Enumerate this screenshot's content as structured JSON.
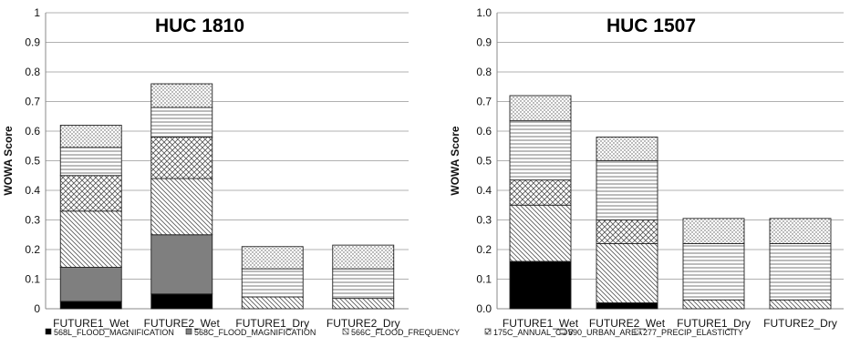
{
  "chart_data": [
    {
      "type": "bar",
      "stacked": true,
      "title": "HUC 1810",
      "ylabel": "WOWA Score",
      "xlabel": "",
      "ylim": [
        0,
        1
      ],
      "yticks": [
        "0",
        "0.1",
        "0.2",
        "0.3",
        "0.4",
        "0.5",
        "0.6",
        "0.7",
        "0.8",
        "0.9",
        "1"
      ],
      "grid": true,
      "legend_position": "bottom",
      "categories": [
        "FUTURE1_Wet",
        "FUTURE2_Wet",
        "FUTURE1_Dry",
        "FUTURE2_Dry"
      ],
      "series": [
        {
          "name": "568L_FLOOD_MAGNIFICATION",
          "pattern": "solid-black",
          "values": [
            0.025,
            0.05,
            0.0,
            0.0
          ]
        },
        {
          "name": "568C_FLOOD_MAGNIFICATION",
          "pattern": "solid-gray",
          "values": [
            0.115,
            0.2,
            0.0,
            0.0
          ]
        },
        {
          "name": "566C_FLOOD_FREQUENCY",
          "pattern": "diag-left",
          "values": [
            0.19,
            0.19,
            0.04,
            0.035
          ]
        },
        {
          "name": "",
          "pattern": "crosshatch",
          "values": [
            0.12,
            0.14,
            0.0,
            0.0
          ]
        },
        {
          "name": "",
          "pattern": "horizontal",
          "values": [
            0.095,
            0.1,
            0.095,
            0.1
          ]
        },
        {
          "name": "",
          "pattern": "dots",
          "values": [
            0.075,
            0.08,
            0.075,
            0.08
          ]
        }
      ]
    },
    {
      "type": "bar",
      "stacked": true,
      "title": "HUC 1507",
      "ylabel": "WOWA Score",
      "xlabel": "",
      "ylim": [
        0,
        1
      ],
      "yticks": [
        "0.0",
        "0.1",
        "0.2",
        "0.3",
        "0.4",
        "0.5",
        "0.6",
        "0.7",
        "0.8",
        "0.9",
        "1.0"
      ],
      "grid": true,
      "legend_position": "bottom",
      "categories": [
        "FUTURE1_Wet",
        "FUTURE2_Wet",
        "FUTURE1_Dry",
        "FUTURE2_Dry"
      ],
      "series": [
        {
          "name": "",
          "pattern": "solid-black",
          "values": [
            0.16,
            0.02,
            0.0,
            0.0
          ]
        },
        {
          "name": "",
          "pattern": "diag-left",
          "values": [
            0.19,
            0.2,
            0.03,
            0.03
          ]
        },
        {
          "name": "175C_ANNUAL_COV",
          "pattern": "crosshatch",
          "values": [
            0.085,
            0.08,
            0.0,
            0.0
          ]
        },
        {
          "name": "590_URBAN_AREA",
          "pattern": "horizontal",
          "values": [
            0.2,
            0.2,
            0.19,
            0.19
          ]
        },
        {
          "name": "277_PRECIP_ELASTICITY",
          "pattern": "dots",
          "values": [
            0.085,
            0.08,
            0.085,
            0.085
          ]
        }
      ]
    }
  ]
}
